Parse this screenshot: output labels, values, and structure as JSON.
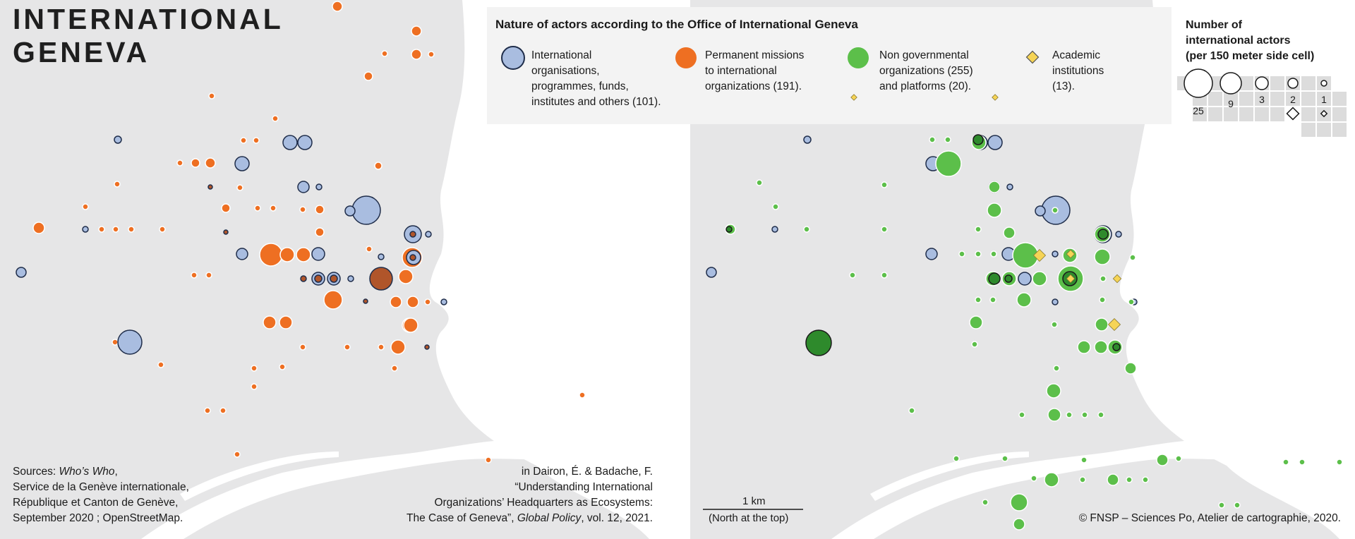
{
  "title": [
    "INTERNATIONAL",
    "GENEVA"
  ],
  "legend": {
    "heading": "Nature of actors according to the Office of International Geneva",
    "categories": [
      {
        "key": "io",
        "lines": [
          "International",
          "organisations,",
          "programmes, funds,",
          "institutes and others (101)."
        ],
        "color": "#a9bde0",
        "stroke": "#1f2d4a"
      },
      {
        "key": "pm",
        "lines": [
          "Permanent missions",
          "to international",
          "organizations (191)."
        ],
        "color": "#ee6f22",
        "stroke": "#ffffff"
      },
      {
        "key": "ngo",
        "lines": [
          "Non governmental",
          "organizations (255)",
          "and platforms (20)."
        ],
        "color": "#5cbf4a",
        "stroke": "#ffffff"
      },
      {
        "key": "ac",
        "lines": [
          "Academic",
          "institutions",
          "(13)."
        ],
        "color": "#f6d456",
        "stroke": "#555555"
      }
    ]
  },
  "size_legend": {
    "heading": [
      "Number of",
      "international actors",
      "(per 150 meter side cell)"
    ],
    "labels": [
      "25",
      "9",
      "3",
      "2",
      "1"
    ]
  },
  "sources": {
    "lines": [
      [
        "Sources: ",
        "Who’s Who",
        ","
      ],
      [
        "Service de la Genève internationale,"
      ],
      [
        "République et Canton de Genève,"
      ],
      [
        "September 2020 ; OpenStreetMap."
      ]
    ]
  },
  "citation": {
    "lines": [
      [
        "in Dairon, É. & Badache, F."
      ],
      [
        "“Understanding International"
      ],
      [
        "Organizations’ Headquarters as Ecosystems:"
      ],
      [
        "The Case of Geneva”, ",
        "Global Policy",
        ", vol. 12, 2021."
      ]
    ]
  },
  "scale": {
    "label": "1 km",
    "note": "(North at the top)"
  },
  "copyright": "© FNSP – Sciences Po, Atelier de cartographie, 2020.",
  "colors": {
    "land": "#e6e6e7",
    "water": "#ffffff",
    "io": "#a9bde0",
    "pm": "#ee6f22",
    "ngo": "#5cbf4a",
    "ngo_dark": "#2e8a2c",
    "academic": "#f6d456",
    "panel": "#f3f3f3"
  },
  "maps": {
    "left": {
      "pm": [
        [
          478,
          9,
          7
        ],
        [
          590,
          44,
          7
        ],
        [
          590,
          77,
          7
        ],
        [
          522,
          108,
          6
        ],
        [
          611,
          77,
          4
        ],
        [
          545,
          76,
          4
        ],
        [
          300,
          136,
          4
        ],
        [
          390,
          168,
          4
        ],
        [
          345,
          199,
          4
        ],
        [
          363,
          199,
          4
        ],
        [
          255,
          231,
          4
        ],
        [
          277,
          231,
          6
        ],
        [
          298,
          231,
          7
        ],
        [
          536,
          235,
          5
        ],
        [
          166,
          261,
          4
        ],
        [
          340,
          266,
          4
        ],
        [
          320,
          295,
          6
        ],
        [
          365,
          295,
          4
        ],
        [
          387,
          295,
          4
        ],
        [
          429,
          297,
          4
        ],
        [
          453,
          297,
          6
        ],
        [
          121,
          293,
          4
        ],
        [
          55,
          323,
          8
        ],
        [
          144,
          325,
          4
        ],
        [
          164,
          325,
          4
        ],
        [
          186,
          325,
          4
        ],
        [
          230,
          325,
          4
        ],
        [
          453,
          329,
          6
        ],
        [
          384,
          361,
          16
        ],
        [
          407,
          361,
          10
        ],
        [
          430,
          361,
          10
        ],
        [
          523,
          353,
          4
        ],
        [
          275,
          390,
          4
        ],
        [
          296,
          390,
          4
        ],
        [
          541,
          392,
          10
        ],
        [
          575,
          392,
          10
        ],
        [
          584,
          365,
          14
        ],
        [
          472,
          425,
          13
        ],
        [
          561,
          428,
          8
        ],
        [
          585,
          428,
          8
        ],
        [
          606,
          428,
          4
        ],
        [
          382,
          457,
          9
        ],
        [
          405,
          457,
          9
        ],
        [
          580,
          461,
          10
        ],
        [
          564,
          492,
          10
        ],
        [
          540,
          492,
          4
        ],
        [
          492,
          492,
          4
        ],
        [
          429,
          492,
          4
        ],
        [
          582,
          461,
          10
        ],
        [
          228,
          517,
          4
        ],
        [
          400,
          520,
          4
        ],
        [
          360,
          522,
          4
        ],
        [
          559,
          522,
          4
        ],
        [
          360,
          548,
          4
        ],
        [
          825,
          560,
          4
        ],
        [
          294,
          582,
          4
        ],
        [
          316,
          582,
          4
        ],
        [
          336,
          644,
          4
        ],
        [
          692,
          652,
          4
        ],
        [
          163,
          485,
          4
        ]
      ],
      "io": [
        [
          167,
          198,
          5
        ],
        [
          411,
          202,
          10
        ],
        [
          432,
          202,
          10
        ],
        [
          343,
          232,
          10
        ],
        [
          430,
          265,
          8
        ],
        [
          452,
          265,
          4
        ],
        [
          519,
          298,
          20
        ],
        [
          496,
          299,
          7
        ],
        [
          585,
          332,
          12
        ],
        [
          607,
          332,
          4
        ],
        [
          121,
          325,
          4
        ],
        [
          343,
          360,
          8
        ],
        [
          451,
          360,
          9
        ],
        [
          30,
          386,
          7
        ],
        [
          451,
          395,
          9
        ],
        [
          473,
          395,
          9
        ],
        [
          497,
          395,
          4
        ],
        [
          540,
          395,
          4
        ],
        [
          629,
          428,
          4
        ],
        [
          184,
          485,
          17
        ],
        [
          586,
          365,
          10
        ],
        [
          540,
          364,
          4
        ]
      ],
      "pm_dark_core": [
        [
          298,
          265,
          3
        ],
        [
          320,
          329,
          3
        ],
        [
          585,
          332,
          4
        ],
        [
          585,
          365,
          4
        ],
        [
          430,
          395,
          4
        ],
        [
          451,
          395,
          5
        ],
        [
          473,
          395,
          5
        ],
        [
          540,
          395,
          16
        ],
        [
          518,
          427,
          3
        ],
        [
          605,
          492,
          3
        ]
      ]
    },
    "right": {
      "io": [
        [
          1144,
          198,
          5
        ],
        [
          1389,
          202,
          10
        ],
        [
          1410,
          202,
          10
        ],
        [
          1322,
          232,
          10
        ],
        [
          1409,
          265,
          8
        ],
        [
          1431,
          265,
          4
        ],
        [
          1496,
          298,
          20
        ],
        [
          1474,
          299,
          7
        ],
        [
          1563,
          332,
          12
        ],
        [
          1585,
          332,
          4
        ],
        [
          1098,
          325,
          4
        ],
        [
          1320,
          360,
          8
        ],
        [
          1429,
          360,
          9
        ],
        [
          1008,
          386,
          7
        ],
        [
          1452,
          395,
          9
        ],
        [
          1474,
          395,
          4
        ],
        [
          1518,
          395,
          4
        ],
        [
          1607,
          428,
          4
        ],
        [
          1495,
          428,
          4
        ],
        [
          1495,
          360,
          4
        ]
      ],
      "ngo": [
        [
          1321,
          198,
          4
        ],
        [
          1343,
          198,
          4
        ],
        [
          1387,
          202,
          10
        ],
        [
          1344,
          232,
          18
        ],
        [
          1076,
          259,
          4
        ],
        [
          1099,
          293,
          4
        ],
        [
          1253,
          262,
          4
        ],
        [
          1409,
          265,
          8
        ],
        [
          1495,
          298,
          4
        ],
        [
          1409,
          298,
          10
        ],
        [
          1035,
          325,
          7
        ],
        [
          1143,
          325,
          4
        ],
        [
          1253,
          325,
          4
        ],
        [
          1386,
          325,
          4
        ],
        [
          1430,
          330,
          8
        ],
        [
          1562,
          332,
          11
        ],
        [
          1363,
          360,
          4
        ],
        [
          1386,
          360,
          4
        ],
        [
          1408,
          360,
          4
        ],
        [
          1453,
          362,
          18
        ],
        [
          1516,
          362,
          10
        ],
        [
          1562,
          364,
          11
        ],
        [
          1605,
          365,
          4
        ],
        [
          1208,
          390,
          4
        ],
        [
          1253,
          390,
          4
        ],
        [
          1407,
          395,
          10
        ],
        [
          1430,
          395,
          10
        ],
        [
          1473,
          395,
          10
        ],
        [
          1517,
          395,
          18
        ],
        [
          1563,
          395,
          4
        ],
        [
          1386,
          425,
          4
        ],
        [
          1407,
          425,
          4
        ],
        [
          1451,
          425,
          10
        ],
        [
          1562,
          425,
          4
        ],
        [
          1603,
          428,
          4
        ],
        [
          1383,
          457,
          9
        ],
        [
          1494,
          460,
          4
        ],
        [
          1561,
          460,
          9
        ],
        [
          1381,
          488,
          4
        ],
        [
          1536,
          492,
          9
        ],
        [
          1560,
          492,
          9
        ],
        [
          1580,
          492,
          10
        ],
        [
          1602,
          522,
          8
        ],
        [
          1497,
          522,
          4
        ],
        [
          1493,
          554,
          10
        ],
        [
          1494,
          588,
          9
        ],
        [
          1515,
          588,
          4
        ],
        [
          1537,
          588,
          4
        ],
        [
          1560,
          588,
          4
        ],
        [
          1292,
          582,
          4
        ],
        [
          1448,
          588,
          4
        ],
        [
          1355,
          650,
          4
        ],
        [
          1424,
          650,
          4
        ],
        [
          1536,
          652,
          4
        ],
        [
          1647,
          652,
          8
        ],
        [
          1670,
          650,
          4
        ],
        [
          1822,
          655,
          4
        ],
        [
          1845,
          655,
          4
        ],
        [
          1898,
          655,
          4
        ],
        [
          1465,
          678,
          4
        ],
        [
          1490,
          680,
          10
        ],
        [
          1534,
          680,
          4
        ],
        [
          1577,
          680,
          8
        ],
        [
          1600,
          680,
          4
        ],
        [
          1623,
          680,
          4
        ],
        [
          1396,
          712,
          4
        ],
        [
          1444,
          712,
          12
        ],
        [
          1731,
          716,
          4
        ],
        [
          1753,
          716,
          4
        ],
        [
          1444,
          743,
          8
        ]
      ],
      "ngo_dark": [
        [
          1386,
          198,
          7
        ],
        [
          1033,
          325,
          4
        ],
        [
          1160,
          486,
          18
        ],
        [
          1409,
          395,
          8
        ],
        [
          1429,
          395,
          5
        ],
        [
          1516,
          395,
          10
        ],
        [
          1563,
          332,
          7
        ],
        [
          1582,
          492,
          5
        ]
      ],
      "academic": [
        [
          1473,
          362,
          6
        ],
        [
          1517,
          360,
          4
        ],
        [
          1517,
          395,
          4
        ],
        [
          1583,
          395,
          4
        ],
        [
          1579,
          460,
          6
        ],
        [
          1210,
          138,
          3
        ],
        [
          1410,
          138,
          3
        ]
      ]
    }
  }
}
